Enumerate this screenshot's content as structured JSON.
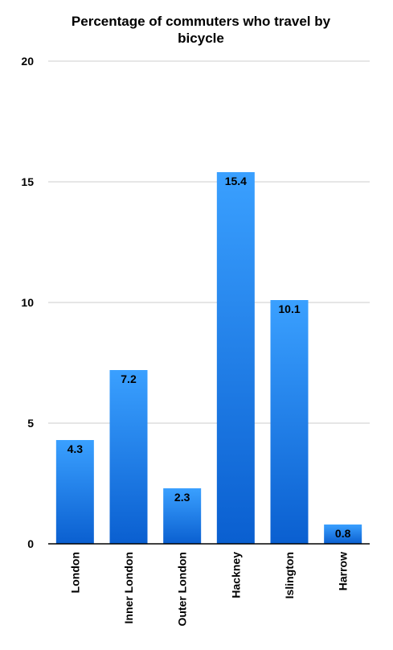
{
  "chart_data": {
    "type": "bar",
    "title": "Percentage of commuters who travel by\nbicycle",
    "categories": [
      "London",
      "Inner London",
      "Outer London",
      "Hackney",
      "Islington",
      "Harrow"
    ],
    "values": [
      4.3,
      7.2,
      2.3,
      15.4,
      10.1,
      0.8
    ],
    "data_labels": [
      "4.3",
      "7.2",
      "2.3",
      "15.4",
      "10.1",
      "0.8"
    ],
    "ylim": [
      0,
      20
    ],
    "yticks": [
      0,
      5,
      10,
      15,
      20
    ],
    "xlabel": "",
    "ylabel": "",
    "grid": true,
    "legend": "none",
    "colors": {
      "bar_top": "#3aa0ff",
      "bar_bottom": "#0a5fd0",
      "grid": "#cccccc",
      "axis": "#000000",
      "text": "#000000"
    }
  }
}
